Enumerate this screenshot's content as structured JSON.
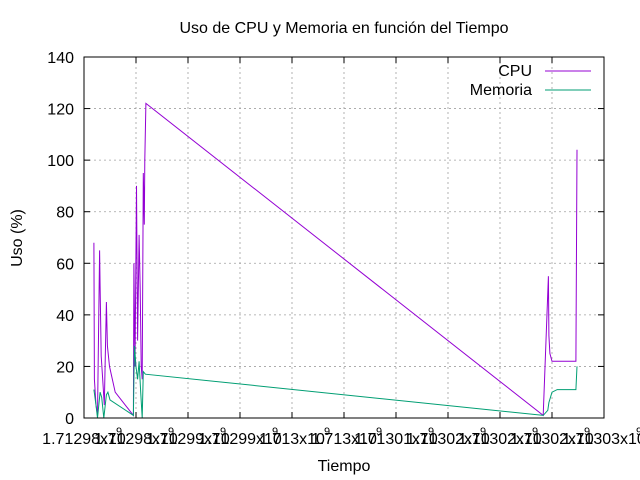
{
  "chart_data": {
    "type": "line",
    "title": "Uso de CPU y Memoria en función del Tiempo",
    "xlabel": "Tiempo",
    "ylabel": "Uso (%)",
    "ylim": [
      0,
      140
    ],
    "xlim": [
      1712980000,
      1713030000
    ],
    "yticks": [
      "0",
      "20",
      "40",
      "60",
      "80",
      "100",
      "120",
      "140"
    ],
    "xticks": [
      {
        "value": 1712980000,
        "label": "1.71298x10"
      },
      {
        "value": 1712985000,
        "label": "1.71298x10"
      },
      {
        "value": 1712990000,
        "label": "1.71299x10"
      },
      {
        "value": 1712995000,
        "label": "1.71299x10"
      },
      {
        "value": 1713000000,
        "label": "1.713x10"
      },
      {
        "value": 1713005000,
        "label": "1.713x10"
      },
      {
        "value": 1713010000,
        "label": "1.71301x10"
      },
      {
        "value": 1713015000,
        "label": "1.71302x10"
      },
      {
        "value": 1713020000,
        "label": "1.71302x10"
      },
      {
        "value": 1713025000,
        "label": "1.71302x10"
      },
      {
        "value": 1713030000,
        "label": "1.71303x10"
      }
    ],
    "tick_exponent": "9",
    "grid": true,
    "legend_position": "top-right",
    "series": [
      {
        "name": "CPU",
        "color": "#9400d3",
        "points": [
          [
            1712980950,
            68
          ],
          [
            1712981000,
            15
          ],
          [
            1712981150,
            5
          ],
          [
            1712981300,
            1
          ],
          [
            1712981500,
            65
          ],
          [
            1712981550,
            51
          ],
          [
            1712981650,
            24
          ],
          [
            1712981800,
            15
          ],
          [
            1712981950,
            5
          ],
          [
            1712982150,
            45
          ],
          [
            1712982250,
            28
          ],
          [
            1712982450,
            20
          ],
          [
            1712983000,
            10
          ],
          [
            1712984750,
            1
          ],
          [
            1712984800,
            60
          ],
          [
            1712984900,
            20
          ],
          [
            1712985050,
            90
          ],
          [
            1712985150,
            30
          ],
          [
            1712985300,
            71
          ],
          [
            1712985400,
            50
          ],
          [
            1712985500,
            20
          ],
          [
            1712985600,
            15
          ],
          [
            1712985700,
            95
          ],
          [
            1712985800,
            75
          ],
          [
            1712985850,
            100
          ],
          [
            1712985950,
            122
          ],
          [
            1713024150,
            1
          ],
          [
            1713024650,
            55
          ],
          [
            1713024700,
            32
          ],
          [
            1713024800,
            25
          ],
          [
            1713025000,
            22
          ],
          [
            1713027300,
            22
          ],
          [
            1713027400,
            104
          ]
        ]
      },
      {
        "name": "Memoria",
        "color": "#009e73",
        "points": [
          [
            1712980950,
            11
          ],
          [
            1712981150,
            5
          ],
          [
            1712981300,
            0
          ],
          [
            1712981550,
            10
          ],
          [
            1712981700,
            8
          ],
          [
            1712981900,
            0
          ],
          [
            1712982150,
            9
          ],
          [
            1712982300,
            10
          ],
          [
            1712982500,
            7
          ],
          [
            1712984750,
            1
          ],
          [
            1712984850,
            28
          ],
          [
            1712985000,
            20
          ],
          [
            1712985150,
            15
          ],
          [
            1712985300,
            22
          ],
          [
            1712985450,
            10
          ],
          [
            1712985600,
            0
          ],
          [
            1712985700,
            18
          ],
          [
            1712985900,
            17
          ],
          [
            1713024150,
            1
          ],
          [
            1713024600,
            3
          ],
          [
            1713024700,
            6
          ],
          [
            1713025000,
            10
          ],
          [
            1713025500,
            11
          ],
          [
            1713027300,
            11
          ],
          [
            1713027400,
            20
          ]
        ]
      }
    ]
  }
}
